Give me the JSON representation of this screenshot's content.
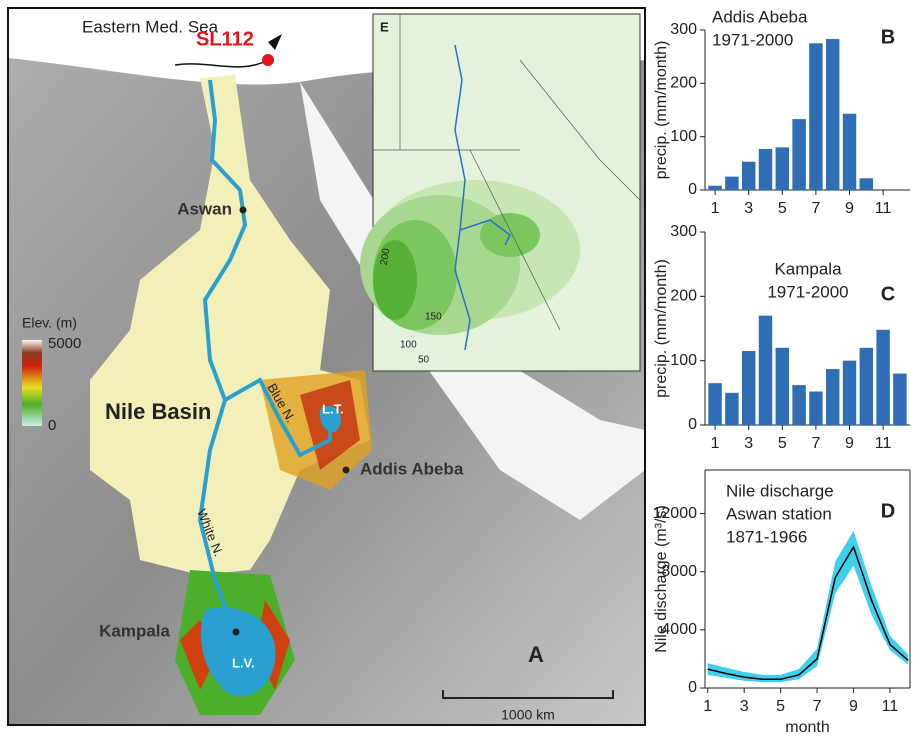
{
  "map": {
    "sea": "Eastern Med. Sea",
    "core": "SL112",
    "aswan": "Aswan",
    "basin": "Nile Basin",
    "blue_nile": "Blue N.",
    "white_nile": "White N.",
    "lake_tana": "L.T.",
    "addis": "Addis Abeba",
    "kampala": "Kampala",
    "lake_victoria": "L.V.",
    "elev_title": "Elev. (m)",
    "elev_max": "5000",
    "elev_min": "0",
    "scale": "1000 km",
    "panel": "A"
  },
  "inset": {
    "panel": "E",
    "contours": [
      "200",
      "150",
      "100",
      "50"
    ]
  },
  "chart_data": [
    {
      "type": "bar",
      "panel": "B",
      "title": "Addis Abeba",
      "subtitle": "1971-2000",
      "y_label": "precip. (mm/month)",
      "color": "#2f6db5",
      "x": [
        1,
        2,
        3,
        4,
        5,
        6,
        7,
        8,
        9,
        10
      ],
      "values": [
        8,
        25,
        53,
        77,
        80,
        133,
        275,
        283,
        143,
        22
      ],
      "xlim": [
        0.4,
        12.6
      ],
      "xticks": [
        1,
        3,
        5,
        7,
        9,
        11
      ],
      "ylim": [
        0,
        300
      ],
      "yticks": [
        0,
        100,
        200,
        300
      ]
    },
    {
      "type": "bar",
      "panel": "C",
      "title": "Kampala",
      "subtitle": "1971-2000",
      "y_label": "precip. (mm/month)",
      "color": "#2f6db5",
      "x": [
        1,
        2,
        3,
        4,
        5,
        6,
        7,
        8,
        9,
        10,
        11,
        12
      ],
      "values": [
        65,
        50,
        115,
        170,
        120,
        62,
        52,
        87,
        100,
        120,
        148,
        80
      ],
      "xlim": [
        0.4,
        12.6
      ],
      "xticks": [
        1,
        3,
        5,
        7,
        9,
        11
      ],
      "ylim": [
        0,
        300
      ],
      "yticks": [
        0,
        100,
        200,
        300
      ]
    },
    {
      "type": "line",
      "panel": "D",
      "title": "Nile discharge",
      "subtitle": "Aswan station",
      "period": "1871-1966",
      "y_label": "Nile discharge (m³/s)",
      "x_label": "month",
      "color": "#000000",
      "band_color": "#3fd0ee",
      "x": [
        1,
        2,
        3,
        4,
        5,
        6,
        7,
        8,
        9,
        10,
        11,
        12
      ],
      "values": [
        1300,
        1000,
        750,
        600,
        600,
        900,
        2000,
        7600,
        9700,
        6000,
        3000,
        1900
      ],
      "lower": [
        900,
        700,
        500,
        400,
        400,
        600,
        1500,
        6500,
        8400,
        5000,
        2600,
        1600
      ],
      "upper": [
        1700,
        1400,
        1100,
        900,
        900,
        1300,
        2700,
        8700,
        10800,
        7000,
        3600,
        2300
      ],
      "xlim": [
        0.85,
        12.1
      ],
      "xticks": [
        1,
        3,
        5,
        7,
        9,
        11
      ],
      "ylim": [
        0,
        15000
      ],
      "yticks": [
        0,
        4000,
        8000,
        12000
      ]
    }
  ]
}
